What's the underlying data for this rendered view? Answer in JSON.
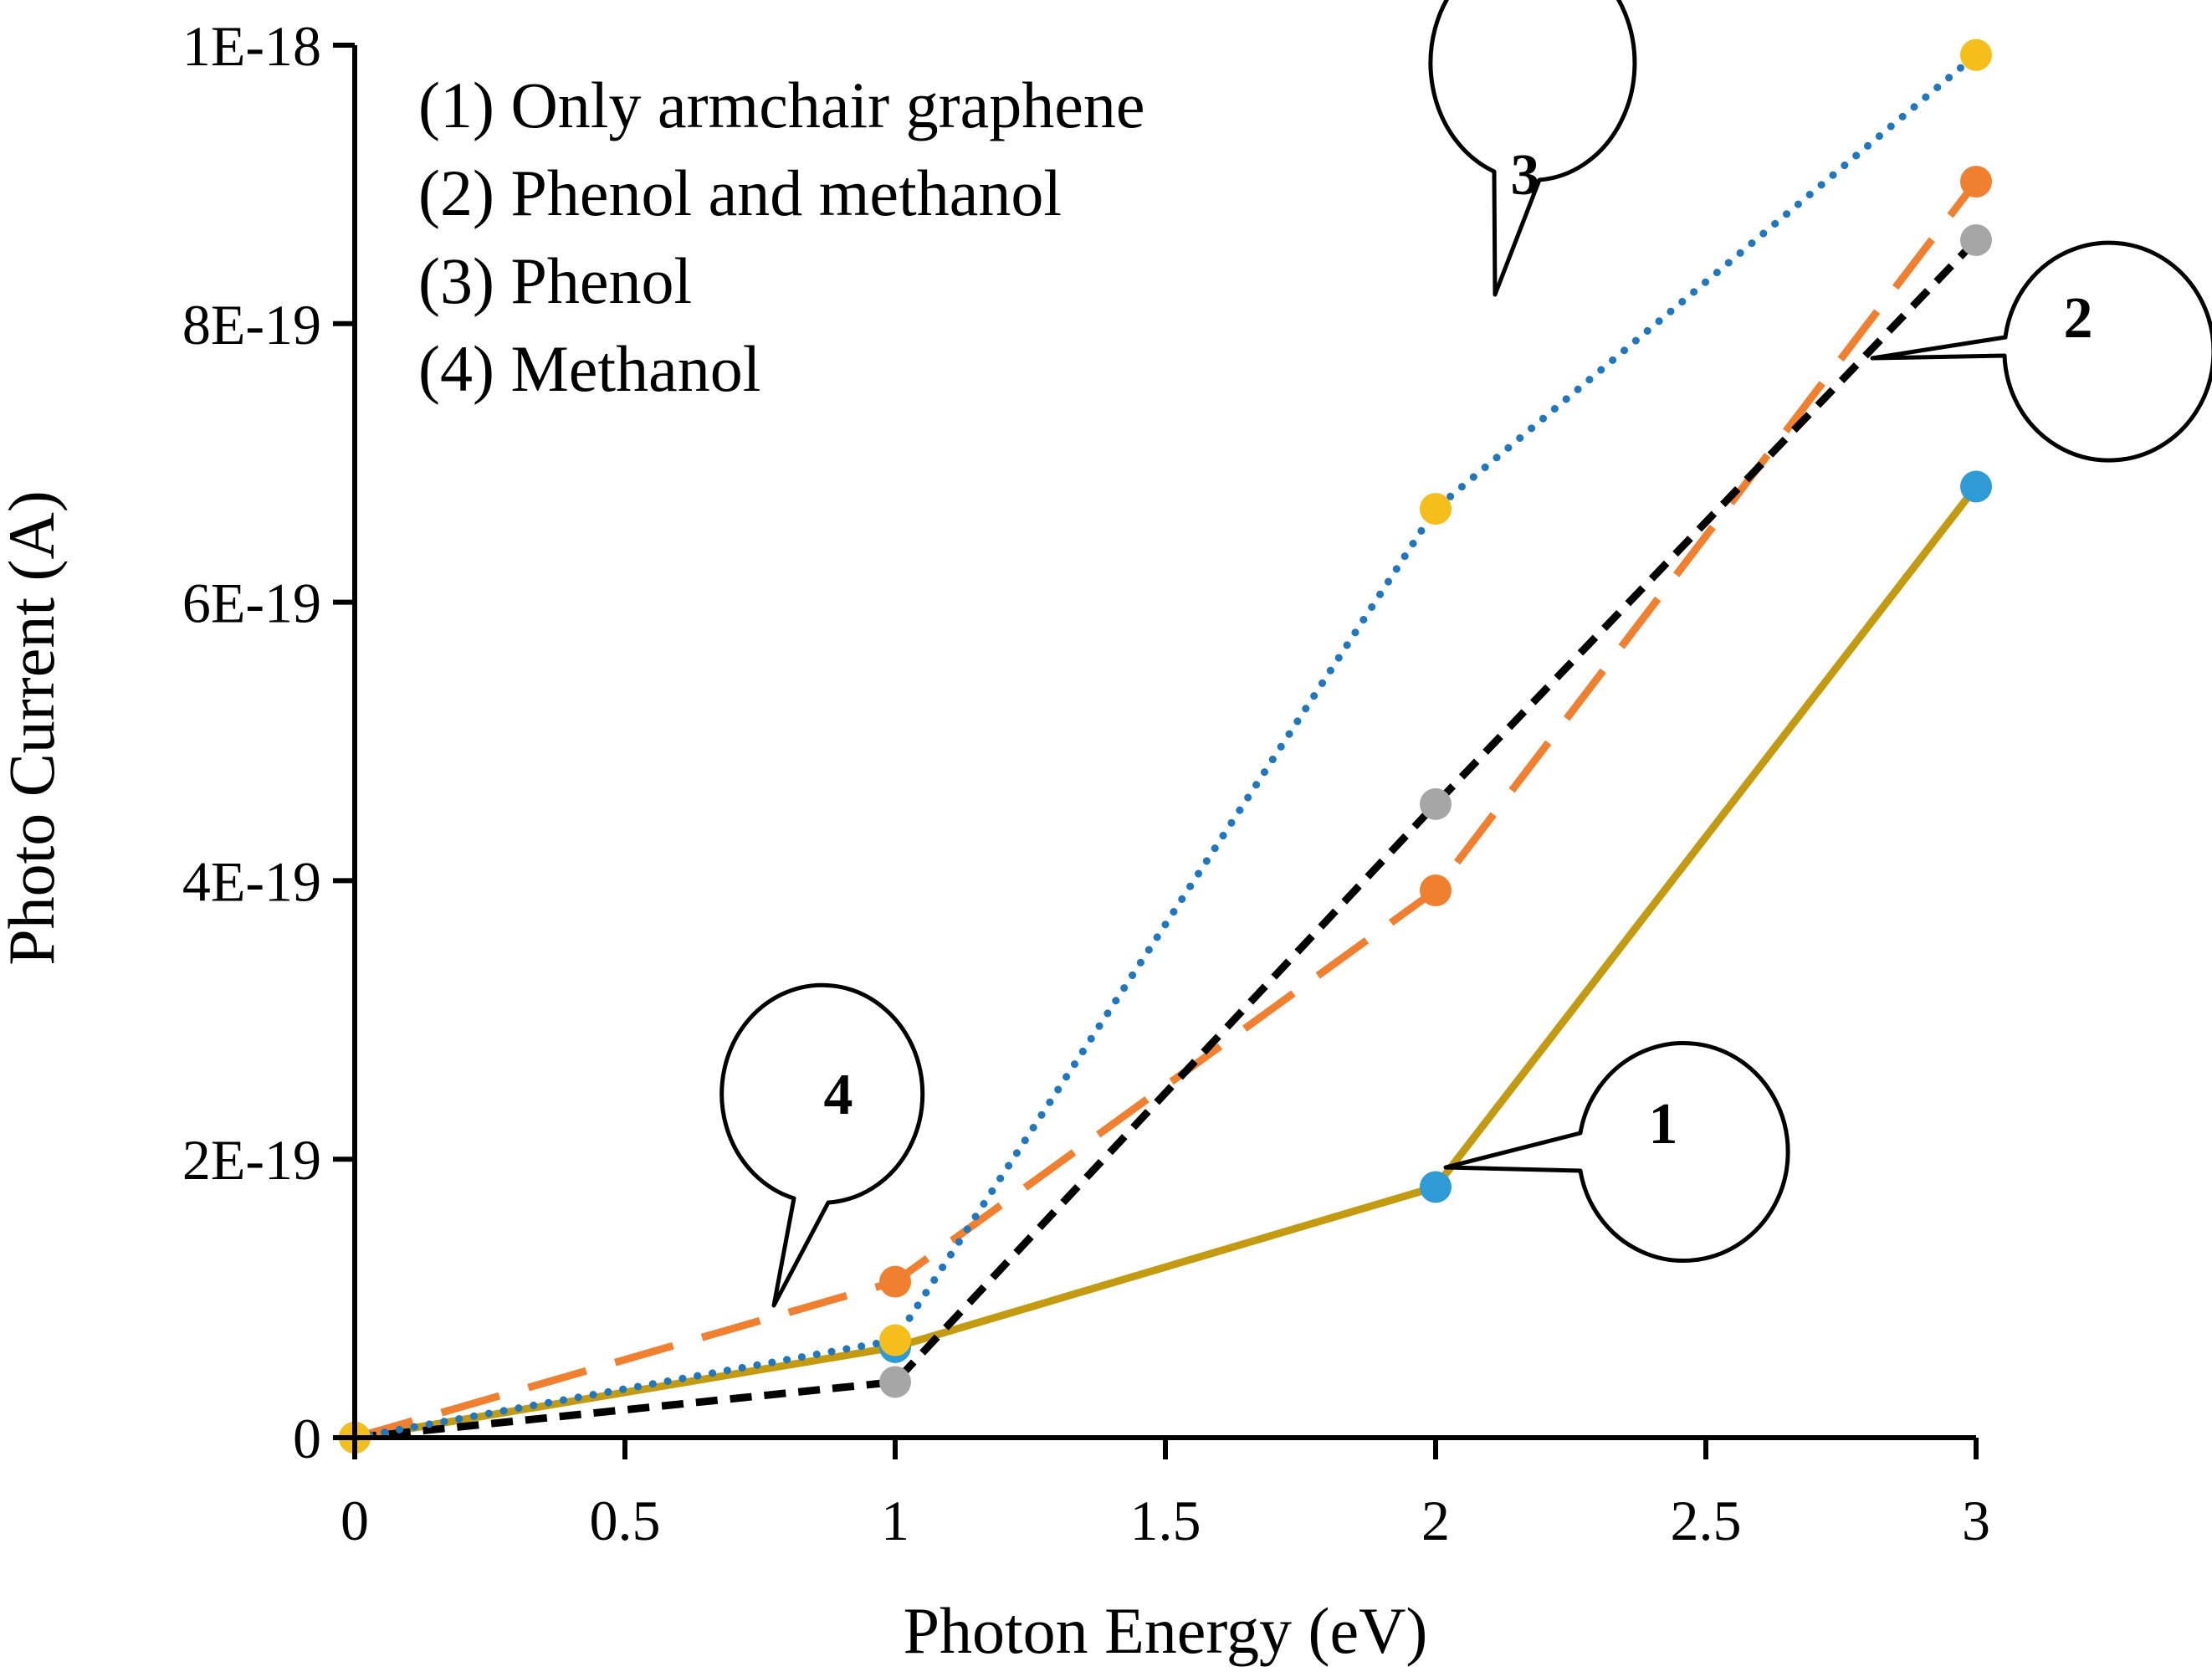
{
  "chart_data": {
    "type": "line",
    "xlabel": "Photon Energy (eV)",
    "ylabel": "Photo Current (A)",
    "xlim": [
      0,
      3
    ],
    "ylim": [
      0,
      1e-18
    ],
    "grid": false,
    "x_ticks": [
      0,
      0.5,
      1,
      1.5,
      2,
      2.5,
      3
    ],
    "x_tick_labels": [
      "0",
      "0.5",
      "1",
      "1.5",
      "2",
      "2.5",
      "3"
    ],
    "y_ticks": [
      0,
      2e-19,
      4e-19,
      6e-19,
      8e-19,
      1e-18
    ],
    "y_tick_labels": [
      "0",
      "2E-19",
      "4E-19",
      "6E-19",
      "8E-19",
      "1E-18"
    ],
    "legend": {
      "placement": "top-left",
      "entries": [
        "(1) Only armchair graphene",
        "(2) Phenol and methanol",
        "(3) Phenol",
        "(4) Methanol"
      ]
    },
    "series": [
      {
        "id": "1",
        "name": "Only armchair graphene",
        "x": [
          0,
          1,
          2,
          3
        ],
        "y": [
          0,
          6.5e-20,
          1.8e-19,
          6.83e-19
        ],
        "line_color": "#C49A10",
        "marker_color": "#2E9BD6",
        "line_style": "solid"
      },
      {
        "id": "2",
        "name": "Phenol and methanol",
        "x": [
          0,
          1,
          2,
          3
        ],
        "y": [
          0,
          4e-20,
          4.55e-19,
          8.6e-19
        ],
        "line_color": "#000000",
        "marker_color": "#A6A6A6",
        "line_style": "dashed"
      },
      {
        "id": "3",
        "name": "Phenol",
        "x": [
          0,
          1,
          2,
          3
        ],
        "y": [
          0,
          7e-20,
          6.67e-19,
          9.93e-19
        ],
        "line_color": "#1F77C0",
        "marker_color": "#F5BE1A",
        "line_style": "dotted"
      },
      {
        "id": "4",
        "name": "Methanol",
        "x": [
          0,
          1,
          2,
          3
        ],
        "y": [
          0,
          1.12e-19,
          3.93e-19,
          9.02e-19
        ],
        "line_color": "#F08030",
        "marker_color": "#F08030",
        "line_style": "long-dash"
      }
    ],
    "annotations": [
      {
        "text": "3",
        "series": "3"
      },
      {
        "text": "2",
        "series": "2"
      },
      {
        "text": "1",
        "series": "1"
      },
      {
        "text": "4",
        "series": "4"
      }
    ]
  }
}
